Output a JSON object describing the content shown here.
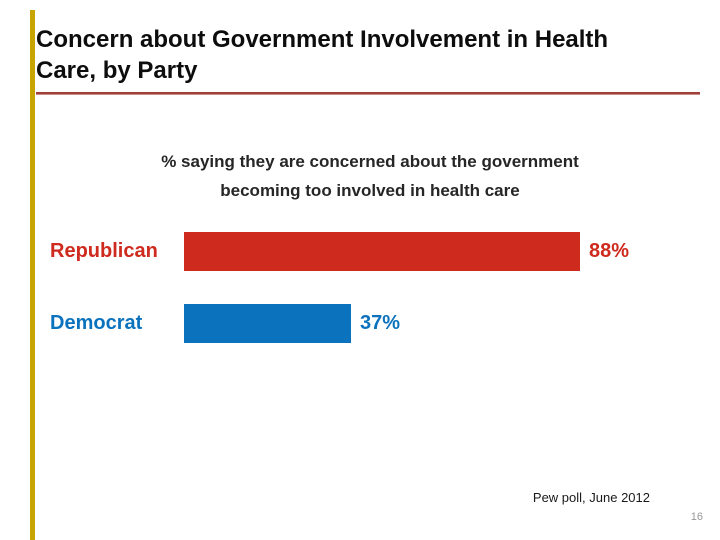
{
  "slide": {
    "title": "Concern about Government Involvement in Health Care, by Party",
    "source": "Pew poll, June 2012",
    "page_number": "16"
  },
  "caption": {
    "line1": "% saying they are concerned about the government",
    "line2": "becoming too involved in health care"
  },
  "colors": {
    "republican_red": "#CE2A1D",
    "democrat_blue": "#0B72BE",
    "title_rule_red": "#A0403A",
    "accent_stripe_gold": "#C7A500",
    "title_black": "#0d0d0d",
    "page_number_gray": "#979797"
  },
  "chart_data": {
    "type": "bar",
    "orientation": "horizontal",
    "title": "% saying they are concerned about the government becoming too involved in health care",
    "categories": [
      "Republican",
      "Democrat"
    ],
    "values": [
      88,
      37
    ],
    "value_labels": [
      "88%",
      "37%"
    ],
    "series_colors": [
      "#CE2A1D",
      "#0B72BE"
    ],
    "xlim": [
      0,
      100
    ],
    "grid": false,
    "legend": false
  }
}
